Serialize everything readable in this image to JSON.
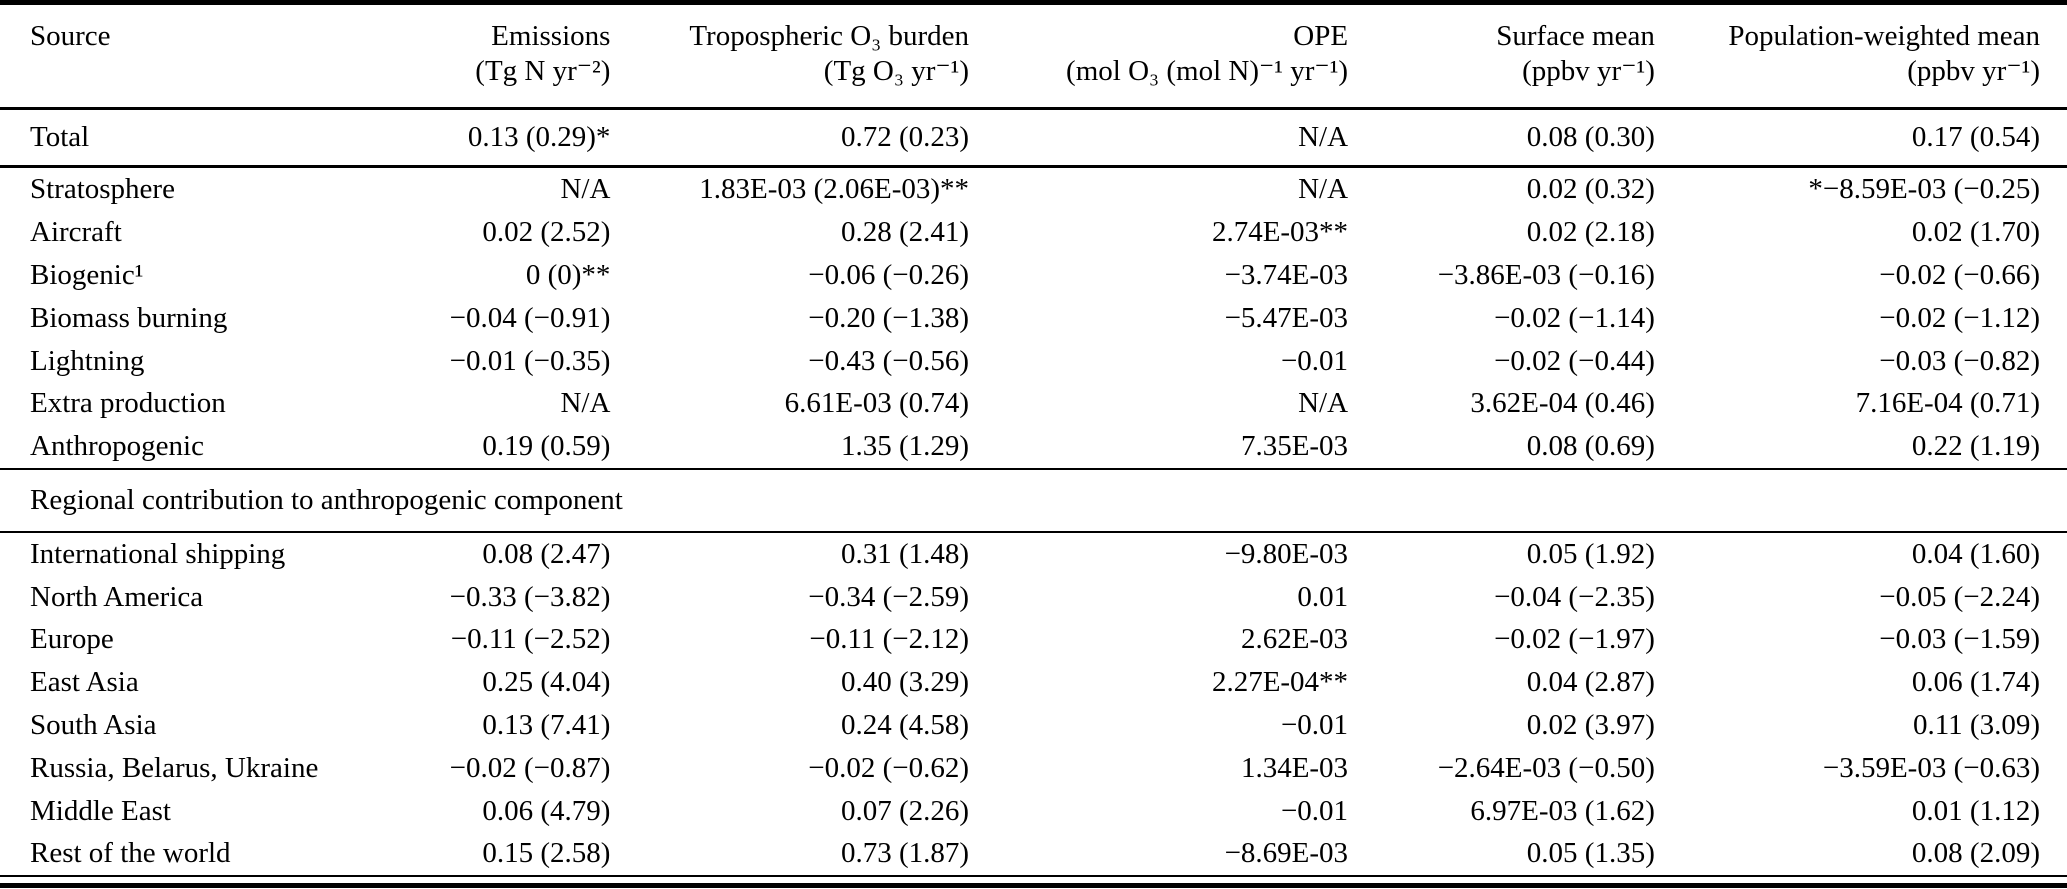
{
  "table": {
    "columns": [
      {
        "label": "Source",
        "unit": ""
      },
      {
        "label": "Emissions",
        "unit": "(Tg N yr⁻²)"
      },
      {
        "label": "Tropospheric O₃ burden",
        "unit": "(Tg O₃ yr⁻¹)"
      },
      {
        "label": "OPE",
        "unit": "(mol O₃ (mol N)⁻¹ yr⁻¹)"
      },
      {
        "label": "Surface mean",
        "unit": "(ppbv yr⁻¹)"
      },
      {
        "label": "Population-weighted mean",
        "unit": "(ppbv yr⁻¹)"
      }
    ],
    "total_rows": [
      {
        "label": "Total",
        "values": [
          "0.13 (0.29)*",
          "0.72 (0.23)",
          "N/A",
          "0.08 (0.30)",
          "0.17 (0.54)"
        ]
      }
    ],
    "source_rows": [
      {
        "label": "Stratosphere",
        "values": [
          "N/A",
          "1.83E-03 (2.06E-03)**",
          "N/A",
          "0.02 (0.32)",
          "*−8.59E-03 (−0.25)"
        ]
      },
      {
        "label": "Aircraft",
        "values": [
          "0.02 (2.52)",
          "0.28 (2.41)",
          "2.74E-03**",
          "0.02 (2.18)",
          "0.02 (1.70)"
        ]
      },
      {
        "label": "Biogenic¹",
        "values": [
          "0 (0)**",
          "−0.06 (−0.26)",
          "−3.74E-03",
          "−3.86E-03 (−0.16)",
          "−0.02 (−0.66)"
        ]
      },
      {
        "label": "Biomass burning",
        "values": [
          "−0.04 (−0.91)",
          "−0.20 (−1.38)",
          "−5.47E-03",
          "−0.02 (−1.14)",
          "−0.02 (−1.12)"
        ]
      },
      {
        "label": "Lightning",
        "values": [
          "−0.01 (−0.35)",
          "−0.43 (−0.56)",
          "−0.01",
          "−0.02 (−0.44)",
          "−0.03 (−0.82)"
        ]
      },
      {
        "label": "Extra production",
        "values": [
          "N/A",
          "6.61E-03 (0.74)",
          "N/A",
          "3.62E-04 (0.46)",
          "7.16E-04 (0.71)"
        ]
      },
      {
        "label": "Anthropogenic",
        "values": [
          "0.19 (0.59)",
          "1.35 (1.29)",
          "7.35E-03",
          "0.08 (0.69)",
          "0.22 (1.19)"
        ]
      }
    ],
    "section_header": "Regional contribution to anthropogenic component",
    "regional_rows": [
      {
        "label": "International shipping",
        "values": [
          "0.08 (2.47)",
          "0.31 (1.48)",
          "−9.80E-03",
          "0.05 (1.92)",
          "0.04 (1.60)"
        ]
      },
      {
        "label": "North America",
        "values": [
          "−0.33 (−3.82)",
          "−0.34 (−2.59)",
          "0.01",
          "−0.04 (−2.35)",
          "−0.05 (−2.24)"
        ]
      },
      {
        "label": "Europe",
        "values": [
          "−0.11 (−2.52)",
          "−0.11 (−2.12)",
          "2.62E-03",
          "−0.02 (−1.97)",
          "−0.03 (−1.59)"
        ]
      },
      {
        "label": "East Asia",
        "values": [
          "0.25 (4.04)",
          "0.40 (3.29)",
          "2.27E-04**",
          "0.04 (2.87)",
          "0.06 (1.74)"
        ]
      },
      {
        "label": "South Asia",
        "values": [
          "0.13 (7.41)",
          "0.24 (4.58)",
          "−0.01",
          "0.02 (3.97)",
          "0.11 (3.09)"
        ]
      },
      {
        "label": "Russia, Belarus, Ukraine",
        "values": [
          "−0.02 (−0.87)",
          "−0.02 (−0.62)",
          "1.34E-03",
          "−2.64E-03 (−0.50)",
          "−3.59E-03 (−0.63)"
        ]
      },
      {
        "label": "Middle East",
        "values": [
          "0.06 (4.79)",
          "0.07 (2.26)",
          "−0.01",
          "6.97E-03 (1.62)",
          "0.01 (1.12)"
        ]
      },
      {
        "label": "Rest of the world",
        "values": [
          "0.15 (2.58)",
          "0.73 (1.87)",
          "−8.69E-03",
          "0.05 (1.35)",
          "0.08 (2.09)"
        ]
      }
    ]
  }
}
